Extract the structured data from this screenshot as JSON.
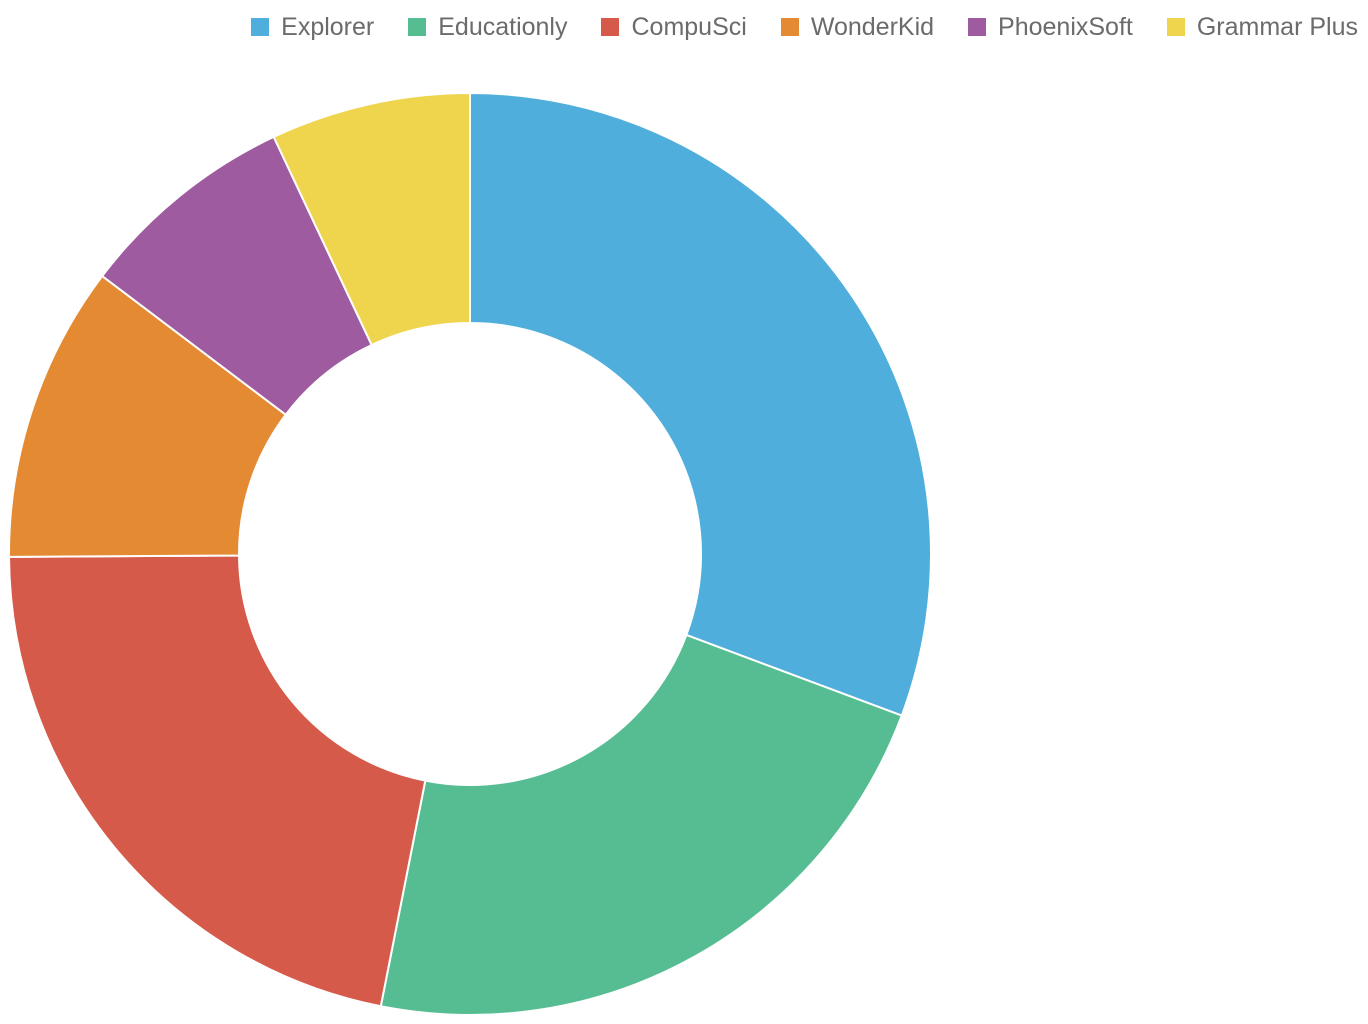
{
  "chart_data": {
    "type": "pie",
    "variant": "donut",
    "legend_position": "top-right",
    "categories": [
      "Explorer",
      "Educationly",
      "CompuSci",
      "WonderKid",
      "PhoenixSoft",
      "Grammar Plus"
    ],
    "values": [
      30.7,
      22.4,
      21.8,
      10.4,
      7.7,
      7.0
    ],
    "colors": [
      "#4FAEDC",
      "#56BD93",
      "#D65A4A",
      "#E38A33",
      "#9E5B9F",
      "#EFD54D"
    ]
  }
}
